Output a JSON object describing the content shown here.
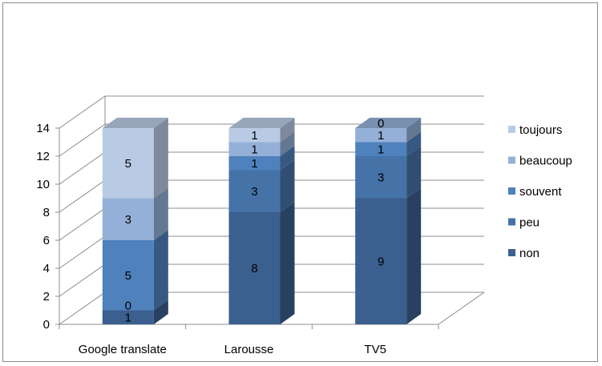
{
  "chart_data": {
    "type": "bar",
    "stacked": true,
    "style": "3d-column",
    "categories": [
      "Google translate",
      "Larousse",
      "TV5"
    ],
    "series": [
      {
        "name": "non",
        "values": [
          1,
          8,
          9
        ],
        "color": "#3B5F8F"
      },
      {
        "name": "peu",
        "values": [
          0,
          3,
          3
        ],
        "color": "#4572A7"
      },
      {
        "name": "souvent",
        "values": [
          5,
          1,
          1
        ],
        "color": "#4F81BD"
      },
      {
        "name": "beaucoup",
        "values": [
          3,
          1,
          1
        ],
        "color": "#95B0D8"
      },
      {
        "name": "toujours",
        "values": [
          5,
          1,
          0
        ],
        "color": "#B9CBE4"
      }
    ],
    "ylim": [
      0,
      14
    ],
    "yticks": [
      0,
      2,
      4,
      6,
      8,
      10,
      12,
      14
    ],
    "grid": true,
    "legend_position": "right",
    "title": "",
    "xlabel": "",
    "ylabel": ""
  }
}
